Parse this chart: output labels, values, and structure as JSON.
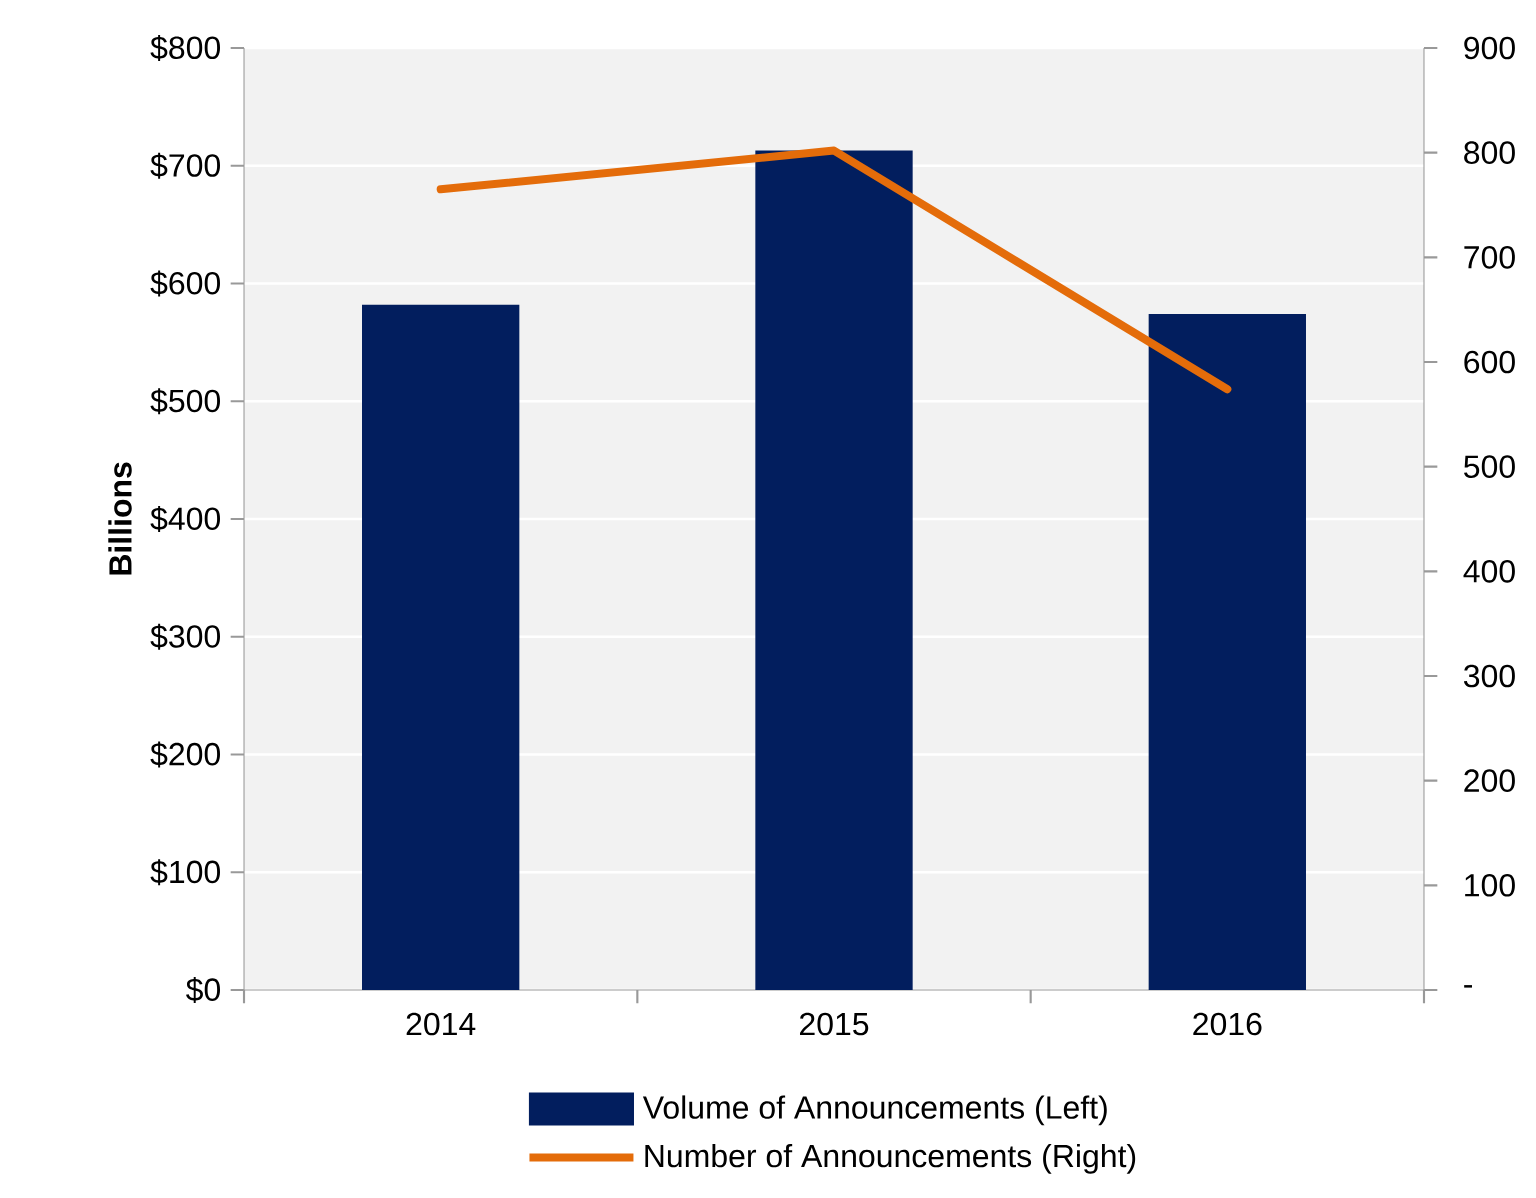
{
  "chart_data": {
    "type": "bar",
    "ylabel": "Billions",
    "categories": [
      "2014",
      "2015",
      "2016"
    ],
    "series": [
      {
        "name": "Volume of Announcements (Left)",
        "color": "#021e5e",
        "values": [
          582,
          713,
          574
        ]
      },
      {
        "name": "Number of Announcements (Right)",
        "type": "line",
        "axis": "y2",
        "color": "#e46c0a",
        "values": [
          765,
          802,
          574
        ]
      }
    ],
    "ylim": [
      0,
      800
    ],
    "yticks": [
      {
        "value": 0,
        "label": "$0"
      },
      {
        "value": 100,
        "label": "$100"
      },
      {
        "value": 200,
        "label": "$200"
      },
      {
        "value": 300,
        "label": "$300"
      },
      {
        "value": 400,
        "label": "$400"
      },
      {
        "value": 500,
        "label": "$500"
      },
      {
        "value": 600,
        "label": "$600"
      },
      {
        "value": 700,
        "label": "$700"
      },
      {
        "value": 800,
        "label": "$800"
      }
    ],
    "y2lim": [
      0,
      900
    ],
    "y2ticks": [
      {
        "value": 0,
        "label": "-"
      },
      100,
      200,
      300,
      400,
      500,
      600,
      700,
      800,
      900
    ],
    "grid": "y",
    "legend": "bottom"
  }
}
